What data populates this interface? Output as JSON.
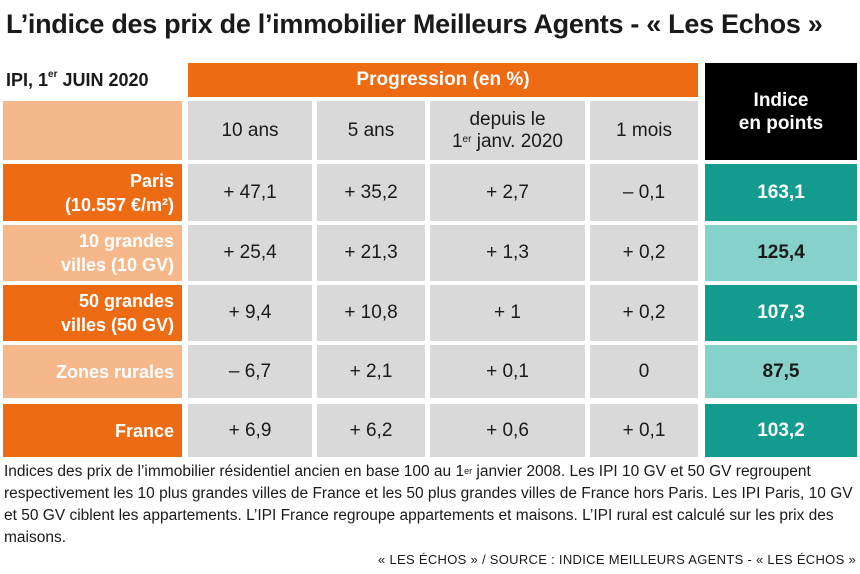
{
  "title": "L’indice des prix de l’immobilier Meilleurs Agents - « Les Echos »",
  "date": {
    "prefix": "IPI, 1",
    "sup": "er",
    "suffix": " JUIN 2020"
  },
  "progression_header": "Progression (en %)",
  "indice_header": {
    "line1": "Indice",
    "line2": "en points"
  },
  "columns": [
    {
      "line1": "10 ans"
    },
    {
      "line1": "5 ans"
    },
    {
      "line1": "depuis le",
      "line2_pre": "1",
      "line2_sup": "er",
      "line2_post": " janv. 2020"
    },
    {
      "line1": "1 mois"
    }
  ],
  "rows": [
    {
      "label1": "Paris",
      "label2": "(10.557 €/m²)",
      "values": [
        "+ 47,1",
        "+ 35,2",
        "+ 2,7",
        "– 0,1"
      ],
      "indice": "163,1"
    },
    {
      "label1": "10 grandes",
      "label2": "villes (10 GV)",
      "values": [
        "+ 25,4",
        "+ 21,3",
        "+ 1,3",
        "+ 0,2"
      ],
      "indice": "125,4"
    },
    {
      "label1": "50 grandes",
      "label2": "villes (50 GV)",
      "values": [
        "+ 9,4",
        "+ 10,8",
        "+ 1",
        "+ 0,2"
      ],
      "indice": "107,3"
    },
    {
      "label1": "Zones rurales",
      "label2": "",
      "values": [
        "– 6,7",
        "+ 2,1",
        "+ 0,1",
        "0"
      ],
      "indice": "87,5"
    },
    {
      "label1": "France",
      "label2": "",
      "values": [
        "+ 6,9",
        "+ 6,2",
        "+ 0,6",
        "+ 0,1"
      ],
      "indice": "103,2"
    }
  ],
  "note": {
    "part1": "Indices des prix de l’immobilier résidentiel ancien en base 100 au 1",
    "sup": "er",
    "part2": " janvier 2008. Les IPI 10 GV et 50 GV regroupent respectivement les 10 plus grandes villes de France et les 50 plus grandes villes de France hors Paris. Les IPI Paris, 10 GV et 50 GV ciblent les appartements. L’IPI France regroupe appartements et maisons. L’IPI rural est calculé sur les prix des maisons."
  },
  "source": "« LES ÉCHOS » / SOURCE : INDICE MEILLEURS AGENTS - « LES ÉCHOS »",
  "colors": {
    "orange_dark": "#ec6b13",
    "orange_light": "#f6b88a",
    "teal_dark": "#139c8e",
    "teal_light": "#86d2ca",
    "gray": "#d9d9d9",
    "black": "#000000"
  }
}
